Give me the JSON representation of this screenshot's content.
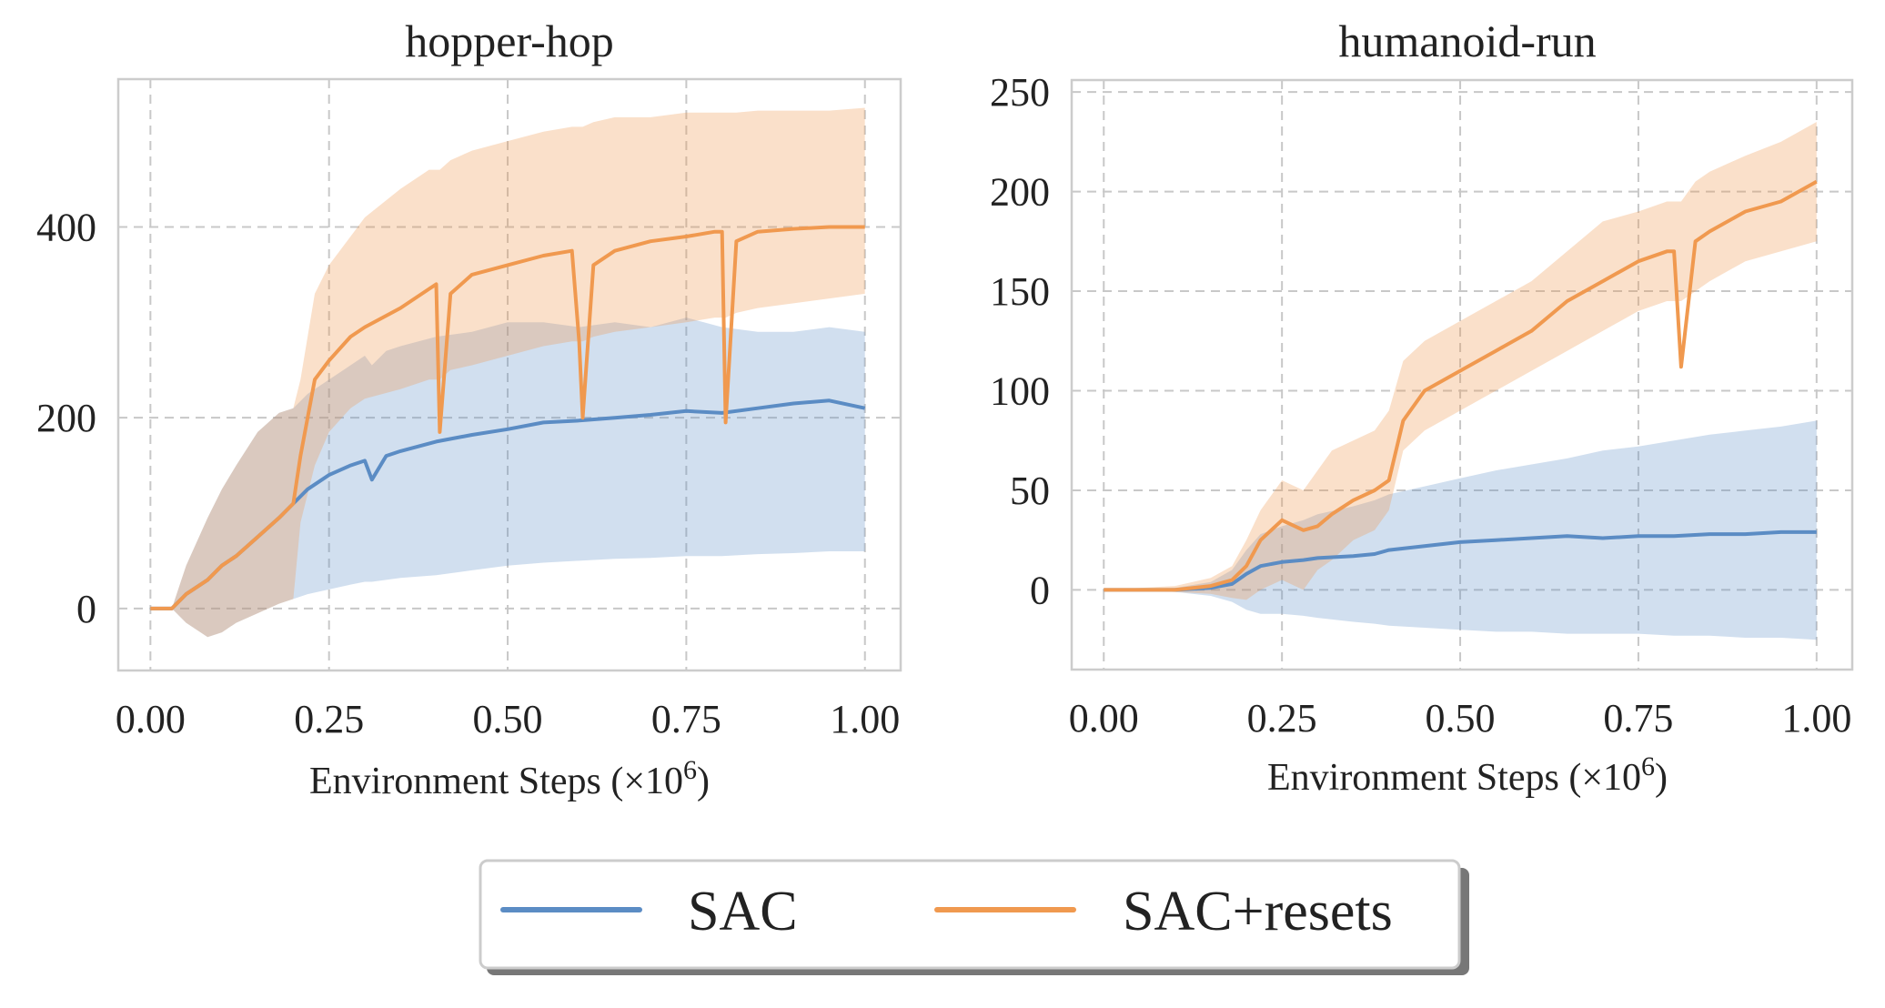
{
  "colors": {
    "sac": "#5b8cc4",
    "sac_resets": "#f0994f"
  },
  "legend": {
    "items": [
      {
        "label": "SAC",
        "color": "#5b8cc4"
      },
      {
        "label": "SAC+resets",
        "color": "#f0994f"
      }
    ]
  },
  "chart_data": [
    {
      "type": "line",
      "title": "hopper-hop",
      "xlabel": "Environment Steps",
      "xlabel_unit_base": "×10",
      "xlabel_unit_exp": "6",
      "xlim": [
        -0.045,
        1.05
      ],
      "ylim": [
        -65,
        555
      ],
      "xticks": [
        0,
        0.25,
        0.5,
        0.75,
        1.0
      ],
      "xtick_labels": [
        "0.00",
        "0.25",
        "0.50",
        "0.75",
        "1.00"
      ],
      "yticks": [
        0,
        200,
        400
      ],
      "ytick_labels": [
        "0",
        "200",
        "400"
      ],
      "series": [
        {
          "name": "SAC",
          "x": [
            0.0,
            0.03,
            0.05,
            0.08,
            0.1,
            0.12,
            0.15,
            0.18,
            0.2,
            0.22,
            0.25,
            0.28,
            0.3,
            0.31,
            0.33,
            0.35,
            0.4,
            0.45,
            0.5,
            0.55,
            0.6,
            0.65,
            0.7,
            0.75,
            0.8,
            0.85,
            0.9,
            0.95,
            1.0
          ],
          "y": [
            0,
            0,
            15,
            30,
            45,
            55,
            75,
            95,
            110,
            125,
            140,
            150,
            155,
            135,
            160,
            165,
            175,
            182,
            188,
            195,
            197,
            200,
            203,
            207,
            205,
            210,
            215,
            218,
            210
          ],
          "lower": [
            0,
            0,
            -15,
            -30,
            -25,
            -15,
            -5,
            5,
            10,
            15,
            20,
            25,
            28,
            28,
            30,
            32,
            35,
            40,
            45,
            48,
            50,
            52,
            53,
            55,
            55,
            57,
            58,
            60,
            60
          ],
          "upper": [
            0,
            0,
            45,
            95,
            125,
            150,
            185,
            205,
            210,
            225,
            240,
            255,
            265,
            255,
            270,
            275,
            285,
            290,
            300,
            300,
            295,
            300,
            295,
            305,
            295,
            290,
            290,
            295,
            290
          ]
        },
        {
          "name": "SAC+resets",
          "x": [
            0.0,
            0.03,
            0.05,
            0.08,
            0.1,
            0.12,
            0.15,
            0.18,
            0.2,
            0.21,
            0.23,
            0.25,
            0.28,
            0.3,
            0.35,
            0.39,
            0.4,
            0.405,
            0.42,
            0.45,
            0.5,
            0.55,
            0.59,
            0.6,
            0.605,
            0.62,
            0.65,
            0.7,
            0.75,
            0.79,
            0.8,
            0.805,
            0.82,
            0.85,
            0.9,
            0.95,
            1.0
          ],
          "y": [
            0,
            0,
            15,
            30,
            45,
            55,
            75,
            95,
            110,
            160,
            240,
            260,
            285,
            295,
            315,
            335,
            340,
            185,
            330,
            350,
            360,
            370,
            375,
            280,
            200,
            360,
            375,
            385,
            390,
            395,
            395,
            195,
            385,
            395,
            398,
            400,
            400
          ],
          "lower": [
            0,
            0,
            -15,
            -30,
            -25,
            -15,
            -5,
            5,
            10,
            90,
            150,
            185,
            210,
            220,
            230,
            240,
            240,
            240,
            250,
            255,
            265,
            275,
            280,
            280,
            280,
            285,
            290,
            295,
            300,
            305,
            305,
            305,
            310,
            315,
            320,
            325,
            330
          ],
          "upper": [
            0,
            0,
            45,
            95,
            125,
            150,
            185,
            205,
            210,
            240,
            330,
            360,
            390,
            410,
            440,
            460,
            460,
            460,
            470,
            480,
            490,
            500,
            505,
            505,
            505,
            510,
            515,
            515,
            520,
            520,
            520,
            520,
            520,
            522,
            522,
            522,
            525
          ]
        }
      ]
    },
    {
      "type": "line",
      "title": "humanoid-run",
      "xlabel": "Environment Steps",
      "xlabel_unit_base": "×10",
      "xlabel_unit_exp": "6",
      "xlim": [
        -0.045,
        1.05
      ],
      "ylim": [
        -40,
        256
      ],
      "xticks": [
        0,
        0.25,
        0.5,
        0.75,
        1.0
      ],
      "xtick_labels": [
        "0.00",
        "0.25",
        "0.50",
        "0.75",
        "1.00"
      ],
      "yticks": [
        0,
        50,
        100,
        150,
        200,
        250
      ],
      "ytick_labels": [
        "0",
        "50",
        "100",
        "150",
        "200",
        "250"
      ],
      "series": [
        {
          "name": "SAC",
          "x": [
            0.0,
            0.1,
            0.15,
            0.18,
            0.2,
            0.22,
            0.25,
            0.28,
            0.3,
            0.35,
            0.38,
            0.4,
            0.45,
            0.5,
            0.55,
            0.6,
            0.65,
            0.7,
            0.75,
            0.8,
            0.85,
            0.9,
            0.95,
            1.0
          ],
          "y": [
            0,
            0,
            1,
            3,
            8,
            12,
            14,
            15,
            16,
            17,
            18,
            20,
            22,
            24,
            25,
            26,
            27,
            26,
            27,
            27,
            28,
            28,
            29,
            29
          ],
          "lower": [
            0,
            -1,
            -3,
            -6,
            -10,
            -12,
            -12,
            -13,
            -14,
            -16,
            -17,
            -18,
            -19,
            -20,
            -21,
            -21,
            -22,
            -22,
            -22,
            -23,
            -23,
            -24,
            -24,
            -25
          ],
          "upper": [
            0,
            1,
            4,
            10,
            20,
            28,
            32,
            35,
            38,
            42,
            45,
            48,
            52,
            56,
            60,
            63,
            66,
            70,
            72,
            75,
            78,
            80,
            82,
            85
          ]
        },
        {
          "name": "SAC+resets",
          "x": [
            0.0,
            0.1,
            0.15,
            0.18,
            0.2,
            0.22,
            0.25,
            0.28,
            0.3,
            0.32,
            0.35,
            0.38,
            0.4,
            0.42,
            0.45,
            0.5,
            0.55,
            0.6,
            0.65,
            0.7,
            0.75,
            0.79,
            0.8,
            0.81,
            0.83,
            0.85,
            0.9,
            0.95,
            1.0
          ],
          "y": [
            0,
            0,
            2,
            5,
            12,
            25,
            35,
            30,
            32,
            38,
            45,
            50,
            55,
            85,
            100,
            110,
            120,
            130,
            145,
            155,
            165,
            170,
            170,
            112,
            175,
            180,
            190,
            195,
            205
          ],
          "lower": [
            0,
            -1,
            -2,
            -4,
            -5,
            0,
            5,
            0,
            10,
            15,
            25,
            30,
            40,
            70,
            80,
            90,
            100,
            110,
            120,
            130,
            140,
            145,
            145,
            145,
            150,
            155,
            165,
            170,
            175
          ],
          "upper": [
            0,
            2,
            6,
            12,
            25,
            40,
            55,
            50,
            60,
            70,
            75,
            80,
            90,
            115,
            125,
            135,
            145,
            155,
            170,
            185,
            190,
            195,
            195,
            195,
            205,
            210,
            218,
            225,
            235
          ]
        }
      ]
    }
  ]
}
